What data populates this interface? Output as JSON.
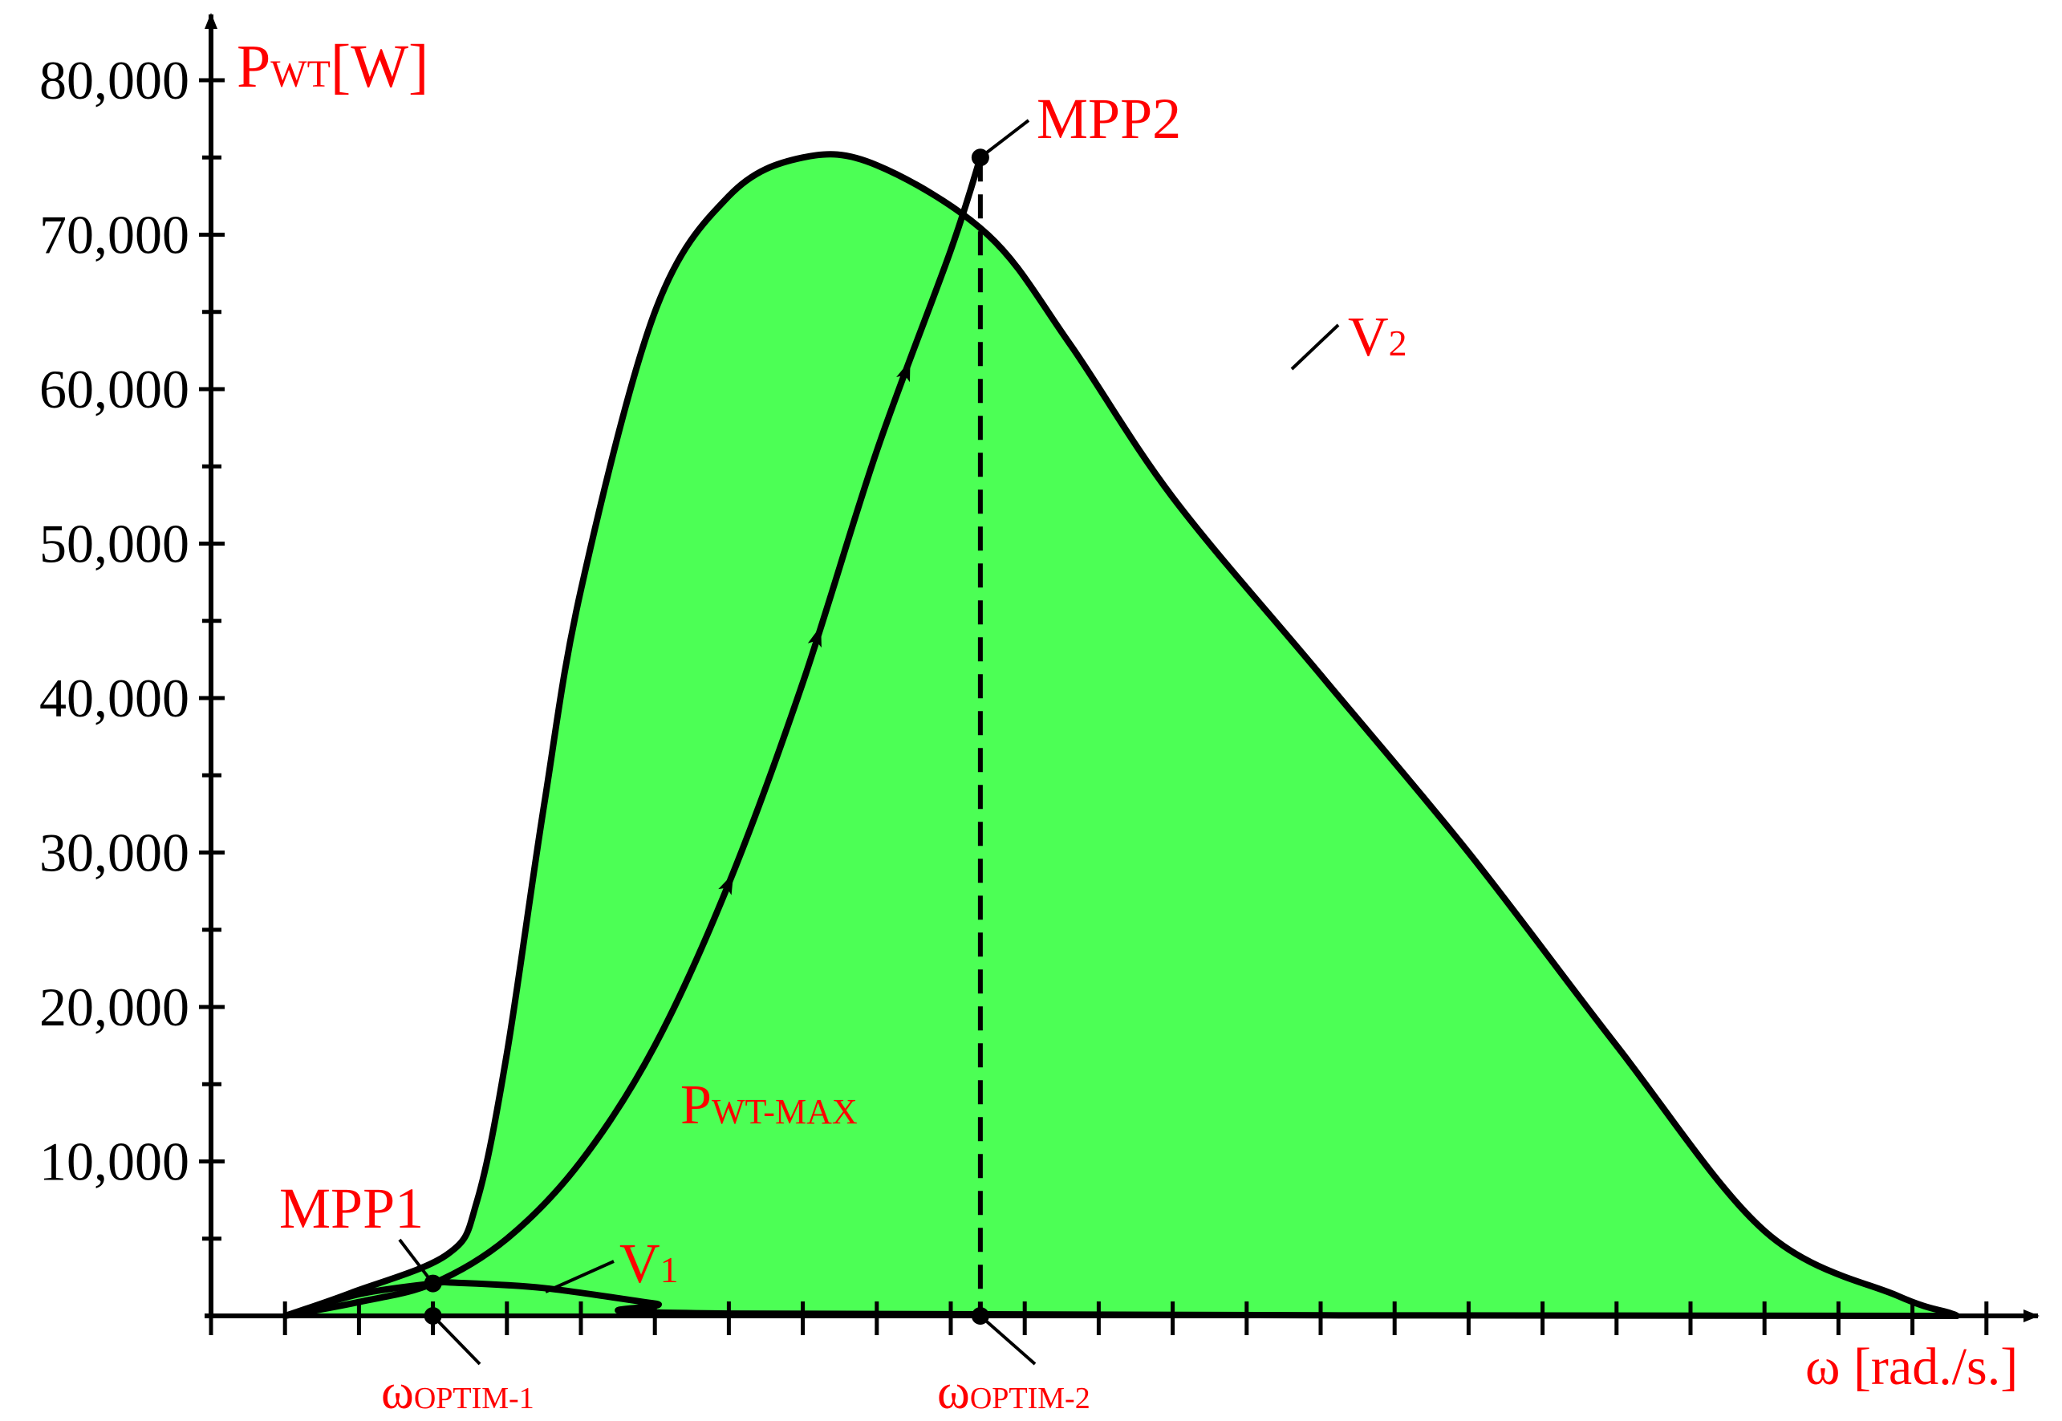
{
  "chart_data": {
    "type": "line",
    "title": "",
    "ylabel": {
      "main": "P",
      "sub": "WT",
      "tail": "[W]"
    },
    "xlabel": "ω [rad./s.]",
    "ylim": [
      0,
      80000
    ],
    "yticks": [
      {
        "value": 10000,
        "label": "10,000"
      },
      {
        "value": 20000,
        "label": "20,000"
      },
      {
        "value": 30000,
        "label": "30,000"
      },
      {
        "value": 40000,
        "label": "40,000"
      },
      {
        "value": 50000,
        "label": "50,000"
      },
      {
        "value": 60000,
        "label": "60,000"
      },
      {
        "value": 70000,
        "label": "70,000"
      },
      {
        "value": 80000,
        "label": "80,000"
      }
    ],
    "xlim": [
      0,
      24
    ],
    "x_tick_count": 24,
    "grid": false,
    "fill_color": "#4cff55",
    "line_color": "#000000",
    "label_color": "#ff0000",
    "series": [
      {
        "name": "V2",
        "label": {
          "main": "V",
          "sub": "2"
        },
        "x": [
          1,
          1.9,
          3.2,
          3.6,
          4.0,
          4.5,
          5.0,
          6.0,
          7.0,
          8.0,
          9.0,
          10.5,
          11.6,
          13.0,
          15.0,
          17.0,
          19.0,
          21.0,
          22.8,
          23.5,
          23.6
        ],
        "y": [
          0,
          1500,
          4000,
          7500,
          17000,
          33000,
          47000,
          65000,
          72500,
          75000,
          74500,
          70000,
          63000,
          53000,
          41500,
          30000,
          17500,
          5500,
          1300,
          200,
          0
        ]
      },
      {
        "name": "V1",
        "label": {
          "main": "V",
          "sub": "1"
        },
        "x": [
          1,
          2.0,
          3.0,
          3.3,
          4.5,
          6.0,
          7.0,
          23.6
        ],
        "y": [
          0,
          1400,
          2100,
          2150,
          1800,
          800,
          150,
          0
        ]
      },
      {
        "name": "PWT-MAX",
        "label": {
          "main": "P",
          "sub": "WT-MAX"
        },
        "x": [
          1,
          2.0,
          3.0,
          4.0,
          5.0,
          6.0,
          7.0,
          8.0,
          9.0,
          10.0,
          10.4
        ],
        "y": [
          0,
          900,
          2100,
          5000,
          10000,
          17500,
          28000,
          41000,
          56000,
          69000,
          75000
        ],
        "arrows_at_x": [
          7.0,
          8.2,
          9.4
        ]
      }
    ],
    "points": [
      {
        "name": "MPP1",
        "label": "MPP1",
        "x": 3.0,
        "y": 2100
      },
      {
        "name": "MPP2",
        "label": "MPP2",
        "x": 10.4,
        "y": 75000
      },
      {
        "name": "omega-optim-1",
        "label": {
          "main": "ω",
          "sub": "OPTIM-1"
        },
        "x": 3.0,
        "y": 0
      },
      {
        "name": "omega-optim-2",
        "label": {
          "main": "ω",
          "sub": "OPTIM-2"
        },
        "x": 10.4,
        "y": 0
      }
    ]
  }
}
